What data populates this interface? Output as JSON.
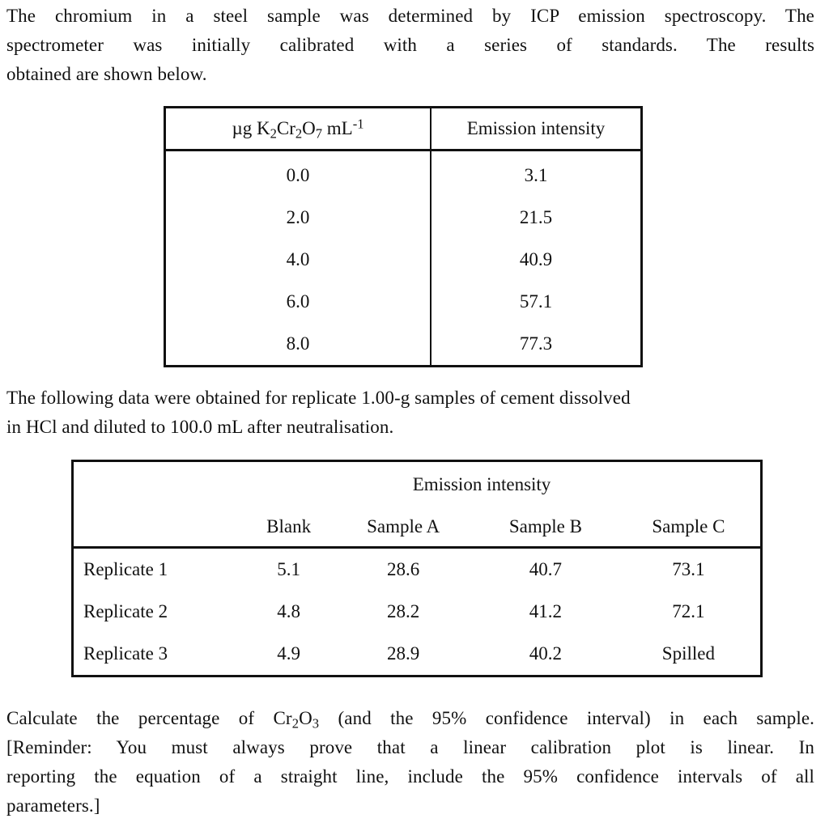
{
  "intro": {
    "line1": "The chromium in a steel sample was determined by ICP emission spectroscopy.  The",
    "line2": "spectrometer was initially calibrated with a series of standards.   The results",
    "line3": "obtained are shown below."
  },
  "calibration_table": {
    "header": {
      "col1_prefix": "µg K",
      "col1_sub1": "2",
      "col1_mid": "Cr",
      "col1_sub2": "2",
      "col1_mid2": "O",
      "col1_sub3": "7",
      "col1_unit": " mL",
      "col1_sup": "-1",
      "col2": "Emission intensity"
    },
    "rows": [
      {
        "conc": "0.0",
        "intensity": "3.1"
      },
      {
        "conc": "2.0",
        "intensity": "21.5"
      },
      {
        "conc": "4.0",
        "intensity": "40.9"
      },
      {
        "conc": "6.0",
        "intensity": "57.1"
      },
      {
        "conc": "8.0",
        "intensity": "77.3"
      }
    ]
  },
  "middle_text": {
    "line1": "The following data were obtained for replicate 1.00-g samples of cement dissolved",
    "line2": "in HCl and diluted to 100.0 mL after neutralisation."
  },
  "sample_table": {
    "group_header": "Emission intensity",
    "columns": [
      "Blank",
      "Sample A",
      "Sample B",
      "Sample C"
    ],
    "rows": [
      {
        "label": "Replicate 1",
        "values": [
          "5.1",
          "28.6",
          "40.7",
          "73.1"
        ]
      },
      {
        "label": "Replicate 2",
        "values": [
          "4.8",
          "28.2",
          "41.2",
          "72.1"
        ]
      },
      {
        "label": "Replicate 3",
        "values": [
          "4.9",
          "28.9",
          "40.2",
          "Spilled"
        ]
      }
    ]
  },
  "question": {
    "line1_a": "Calculate the percentage of Cr",
    "line1_sub1": "2",
    "line1_b": "O",
    "line1_sub2": "3",
    "line1_c": " (and the 95% confidence interval) in each sample.",
    "line2": "[Reminder: You must always prove that a linear calibration plot is linear.   In",
    "line3": "reporting the equation of a straight line, include the 95% confidence intervals of all",
    "line4": "parameters.]"
  }
}
